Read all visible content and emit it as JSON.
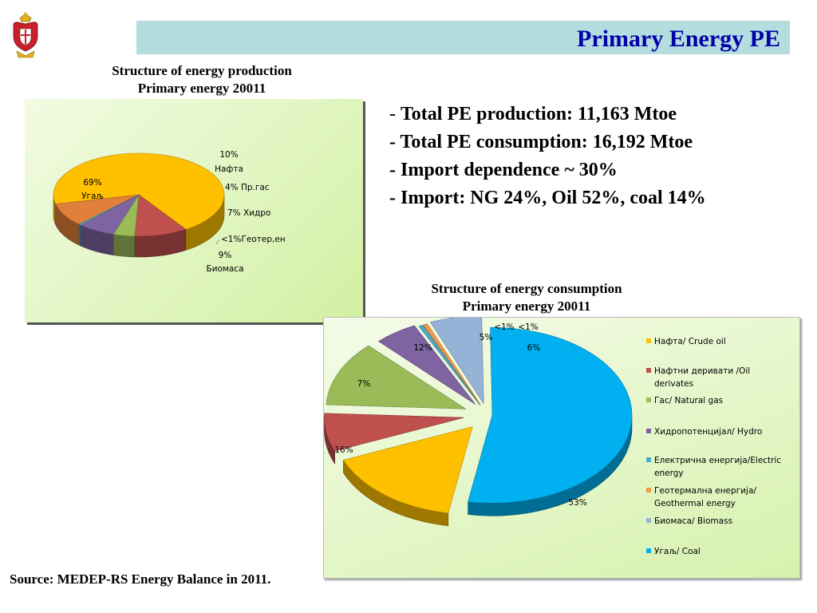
{
  "header": {
    "title": "Primary Energy PE"
  },
  "production_chart": {
    "title_line1": "Structure of energy production",
    "title_line2": "Primary energy 20011"
  },
  "consumption_chart": {
    "title_line1": "Structure of energy consumption",
    "title_line2": "Primary energy 20011"
  },
  "bullets": [
    {
      "dash": "- ",
      "text": "Total PE production: 11,163 Mtoe"
    },
    {
      "dash": "",
      "text": "- Total PE consumption: 16,192 Mtoe"
    },
    {
      "dash": "",
      "text": "- Import dependence ~ 30%"
    },
    {
      "dash": "",
      "text": "- Import: NG 24%, Oil 52%, coal 14%"
    }
  ],
  "source": "Source: MEDEP-RS Energy Balance in 2011.",
  "chart_data": [
    {
      "type": "pie",
      "title": "Structure of energy production Primary energy 20011",
      "slices": [
        {
          "label": "Угаљ",
          "pct_label": "69%",
          "value": 69,
          "color": "#ffc000"
        },
        {
          "label": "Нафта",
          "pct_label": "10%",
          "value": 10,
          "color": "#c0504d"
        },
        {
          "label": "Пр.гас",
          "pct_label": "4%",
          "value": 4,
          "color": "#9bbb59"
        },
        {
          "label": "Хидро",
          "pct_label": "7%",
          "value": 7,
          "color": "#8064a2"
        },
        {
          "label": "Геотер,ен",
          "pct_label": "<1%",
          "value": 0.5,
          "color": "#4bacc6"
        },
        {
          "label": "Биомаса",
          "pct_label": "9%",
          "value": 9,
          "color": "#e0803a"
        }
      ]
    },
    {
      "type": "pie",
      "title": "Structure of energy consumption Primary energy 20011",
      "legend_position": "right",
      "slices": [
        {
          "label": "Нафта/ Crude oil",
          "pct_label": "16%",
          "value": 16,
          "color": "#ffc000"
        },
        {
          "label": "Нафтни деривати /Oil derivates",
          "pct_label": "7%",
          "value": 7,
          "color": "#c0504d"
        },
        {
          "label": "Гас/ Natural gas",
          "pct_label": "12%",
          "value": 12,
          "color": "#9bbb59"
        },
        {
          "label": "Хидропотенцијал/ Hydro",
          "pct_label": "5%",
          "value": 5,
          "color": "#8064a2"
        },
        {
          "label": "Електрична енергија/Electric energy",
          "pct_label": "<1%",
          "value": 0.5,
          "color": "#4bacc6"
        },
        {
          "label": "Геотермална енергија/ Geothermal energy",
          "pct_label": "<1%",
          "value": 0.5,
          "color": "#f79646"
        },
        {
          "label": "Биомаса/ Biomass",
          "pct_label": "6%",
          "value": 6,
          "color": "#95b3d7"
        },
        {
          "label": "Угаљ/ Coal",
          "pct_label": "53%",
          "value": 53,
          "color": "#00b0f0"
        }
      ]
    }
  ]
}
